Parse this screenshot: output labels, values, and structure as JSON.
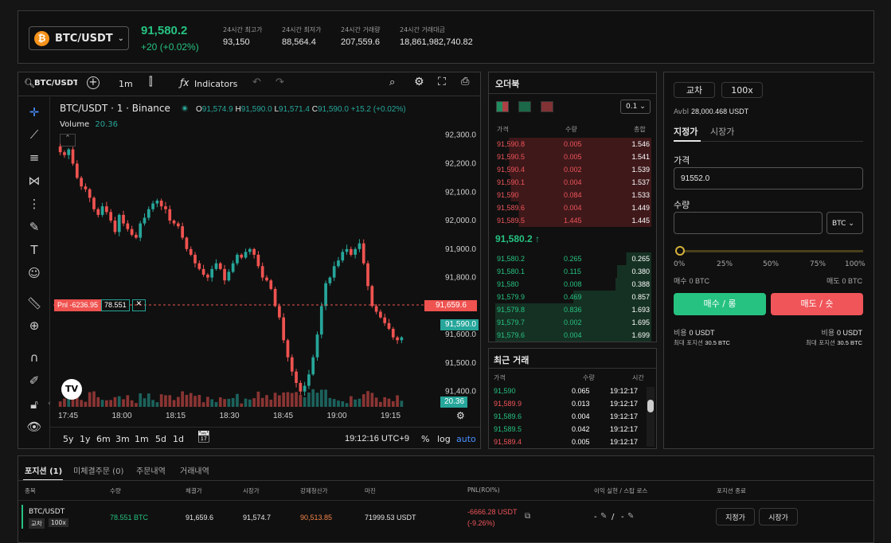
{
  "ticker": {
    "symbol": "BTC/USDT",
    "price": "91,580.2",
    "change": "+20 (+0.02%)",
    "stats": [
      {
        "label": "24시간 최고가",
        "value": "93,150"
      },
      {
        "label": "24시간 최저가",
        "value": "88,564.4"
      },
      {
        "label": "24시간 거래량",
        "value": "207,559.6"
      },
      {
        "label": "24시간 거래대금",
        "value": "18,861,982,740.82"
      }
    ]
  },
  "chart_toolbar": {
    "symbol": "BTC/USDT",
    "interval": "1m",
    "indicators": "Indicators"
  },
  "chart_header": {
    "title": "BTC/USDT · 1 · Binance",
    "o_label": "O",
    "o_val": "91,574.9",
    "h_label": "H",
    "h_val": "91,590.0",
    "l_label": "L",
    "l_val": "91,571.4",
    "c_label": "C",
    "c_val": "91,590.0",
    "chg": "+15.2 (+0.02%)",
    "volume_label": "Volume",
    "volume_val": "20.36"
  },
  "chart_data": {
    "type": "candlestick",
    "symbol": "BTC/USDT",
    "interval": "1",
    "exchange": "Binance",
    "ylim": [
      91360,
      92330
    ],
    "y_ticks": [
      "92,300.0",
      "92,200.0",
      "92,100.0",
      "92,000.0",
      "91,900.0",
      "91,800.0",
      "91,700.0",
      "91,600.0",
      "91,500.0",
      "91,400.0"
    ],
    "x_ticks": [
      "17:45",
      "18:00",
      "18:15",
      "18:30",
      "18:45",
      "19:00",
      "19:15"
    ],
    "closes": [
      92240,
      92230,
      92250,
      92200,
      92150,
      92120,
      92110,
      92080,
      92040,
      92020,
      92050,
      92030,
      92000,
      91960,
      92020,
      91990,
      91970,
      91950,
      91940,
      91990,
      92010,
      92040,
      92060,
      92070,
      92050,
      92040,
      92000,
      91990,
      91980,
      91940,
      91900,
      91880,
      91850,
      91830,
      91810,
      91800,
      91830,
      91850,
      91830,
      91790,
      91820,
      91850,
      91880,
      91870,
      91890,
      91900,
      91880,
      91840,
      91800,
      91790,
      91760,
      91700,
      91660,
      91580,
      91520,
      91470,
      91430,
      91400,
      91420,
      91460,
      91520,
      91600,
      91700,
      91780,
      91800,
      91840,
      91860,
      91890,
      91900,
      91880,
      91900,
      91920,
      91850,
      91770,
      91700,
      91680,
      91660,
      91640,
      91620,
      91590,
      91580,
      91590
    ],
    "pnl_line": "91,659.6",
    "current_price": "91,590.0",
    "volume_badge": "20.36",
    "pnl_label": "Pnl -6236.95",
    "pnl_qty": "78.551"
  },
  "chart_footer": {
    "ranges": [
      "5y",
      "1y",
      "6m",
      "3m",
      "1m",
      "5d",
      "1d"
    ],
    "time": "19:12:16 UTC+9",
    "pct": "%",
    "log": "log",
    "auto": "auto"
  },
  "orderbook": {
    "title": "오더북",
    "precision": "0.1",
    "cols": [
      "가격",
      "수량",
      "총합"
    ],
    "asks": [
      [
        "91,590.8",
        "0.005",
        "1.546"
      ],
      [
        "91,590.5",
        "0.005",
        "1.541"
      ],
      [
        "91,590.4",
        "0.002",
        "1.539"
      ],
      [
        "91,590.1",
        "0.004",
        "1.537"
      ],
      [
        "91,590",
        "0.084",
        "1.533"
      ],
      [
        "91,589.6",
        "0.004",
        "1.449"
      ],
      [
        "91,589.5",
        "1.445",
        "1.445"
      ]
    ],
    "mid": "91,580.2 ↑",
    "bids": [
      [
        "91,580.2",
        "0.265",
        "0.265"
      ],
      [
        "91,580.1",
        "0.115",
        "0.380"
      ],
      [
        "91,580",
        "0.008",
        "0.388"
      ],
      [
        "91,579.9",
        "0.469",
        "0.857"
      ],
      [
        "91,579.8",
        "0.836",
        "1.693"
      ],
      [
        "91,579.7",
        "0.002",
        "1.695"
      ],
      [
        "91,579.6",
        "0.004",
        "1.699"
      ]
    ]
  },
  "trades": {
    "title": "최근 거래",
    "cols": [
      "가격",
      "수량",
      "시간"
    ],
    "rows": [
      [
        "91,590",
        "0.065",
        "19:12:17",
        "buy"
      ],
      [
        "91,589.9",
        "0.013",
        "19:12:17",
        "sell"
      ],
      [
        "91,589.6",
        "0.004",
        "19:12:17",
        "buy"
      ],
      [
        "91,589.5",
        "0.042",
        "19:12:17",
        "buy"
      ],
      [
        "91,589.4",
        "0.005",
        "19:12:17",
        "sell"
      ]
    ]
  },
  "order_form": {
    "margin_mode": "교차",
    "leverage": "100x",
    "avbl_label": "Avbl",
    "avbl_value": "28,000.468 USDT",
    "tab_limit": "지정가",
    "tab_market": "시장가",
    "price_label": "가격",
    "price_value": "91552.0",
    "qty_label": "수량",
    "qty_value": "",
    "unit": "BTC",
    "slider_marks": [
      "0%",
      "25%",
      "50%",
      "75%",
      "100%"
    ],
    "buy_amt_label": "매수",
    "buy_amt": "0 BTC",
    "sell_amt_label": "매도",
    "sell_amt": "0 BTC",
    "buy_btn": "매수 / 롱",
    "sell_btn": "매도 / 숏",
    "cost_label": "비용",
    "cost_buy": "0 USDT",
    "cost_sell": "0 USDT",
    "max_label": "최대 포지션",
    "max_buy": "30.5 BTC",
    "max_sell": "30.5 BTC"
  },
  "positions": {
    "tabs": [
      "포지션 (1)",
      "미체결주문 (0)",
      "주문내역",
      "거래내역"
    ],
    "cols": [
      "종목",
      "수량",
      "체결가",
      "시장가",
      "강제청산가",
      "마진",
      "PNL(ROI%)",
      "이익 실현 / 스탑 로스",
      "포지션 종료"
    ],
    "row": {
      "symbol": "BTC/USDT",
      "mode": "교차",
      "lev": "100x",
      "qty": "78.551 BTC",
      "entry": "91,659.6",
      "mark": "91,574.7",
      "liq": "90,513.85",
      "margin": "71999.53 USDT",
      "pnl": "-6666.28 USDT",
      "roi": "(-9.26%)",
      "tp": "-",
      "sl": "-",
      "close_limit": "지정가",
      "close_market": "시장가"
    }
  },
  "colors": {
    "up": "#26a69a",
    "down": "#ef5350",
    "buy": "#26c281",
    "sell": "#f0555a",
    "brand": "#f7931a"
  }
}
